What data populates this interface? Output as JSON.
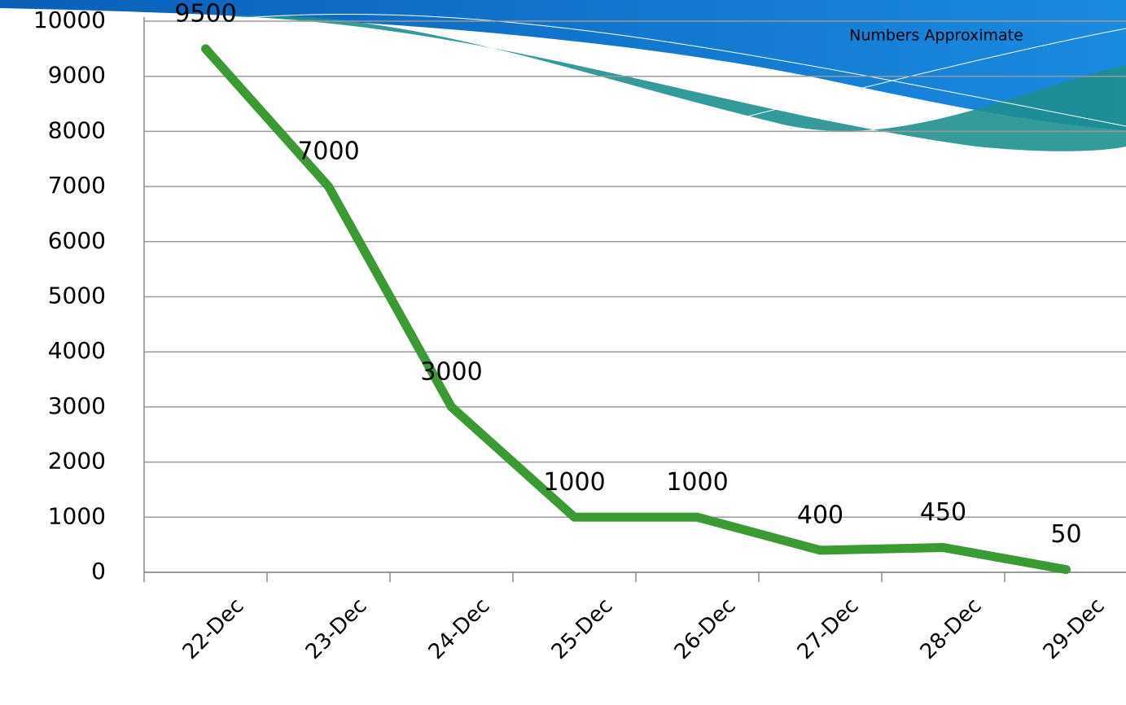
{
  "chart_data": {
    "type": "line",
    "annotation": "Numbers Approximate",
    "categories": [
      "22-Dec",
      "23-Dec",
      "24-Dec",
      "25-Dec",
      "26-Dec",
      "27-Dec",
      "28-Dec",
      "29-Dec"
    ],
    "values": [
      9500,
      7000,
      3000,
      1000,
      1000,
      400,
      450,
      50
    ],
    "color": "#3b9a33",
    "ylim": [
      0,
      10000
    ],
    "yticks": [
      0,
      1000,
      2000,
      3000,
      4000,
      5000,
      6000,
      7000,
      8000,
      9000,
      10000
    ],
    "grid": true
  }
}
